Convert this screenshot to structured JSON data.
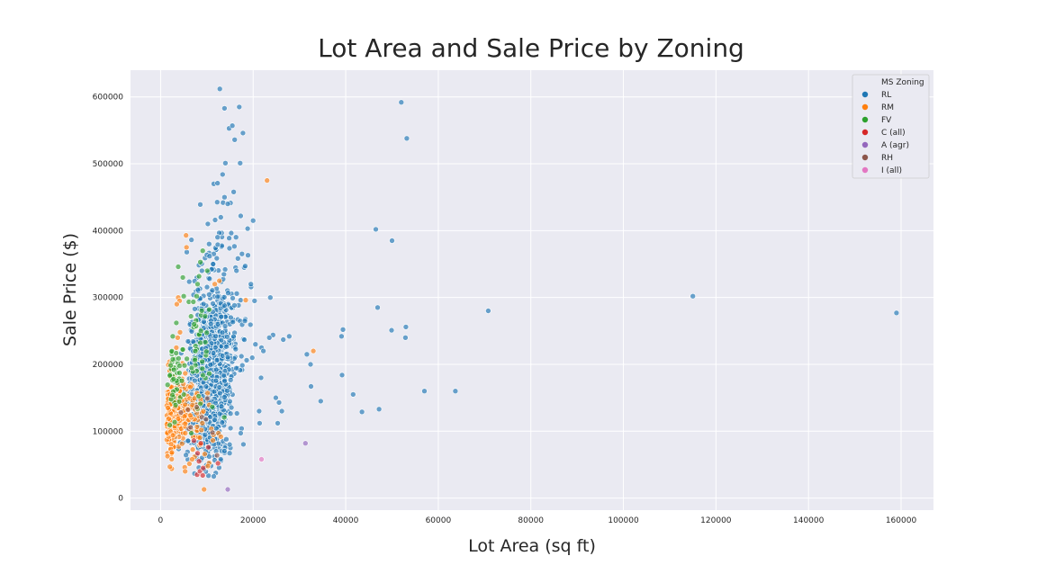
{
  "chart_data": {
    "type": "scatter",
    "title": "Lot Area and Sale Price by Zoning",
    "xlabel": "Lot Area (sq ft)",
    "ylabel": "Sale Price ($)",
    "xlim": [
      -6500,
      167000
    ],
    "ylim": [
      -18000,
      640000
    ],
    "x_ticks": [
      0,
      20000,
      40000,
      60000,
      80000,
      100000,
      120000,
      140000,
      160000
    ],
    "y_ticks": [
      0,
      100000,
      200000,
      300000,
      400000,
      500000,
      600000
    ],
    "grid": true,
    "legend": {
      "title": "MS Zoning",
      "placement": "top-right"
    },
    "point_opacity": 0.65,
    "series": [
      {
        "name": "RL",
        "color": "#1f77b4",
        "clusters": [
          {
            "cx": 11000,
            "cy": 185000,
            "sx": 2200,
            "sy": 55000,
            "n": 950,
            "seed": 11
          },
          {
            "cx": 12500,
            "cy": 300000,
            "sx": 3000,
            "sy": 60000,
            "n": 140,
            "seed": 12
          },
          {
            "cx": 8500,
            "cy": 120000,
            "sx": 2500,
            "sy": 30000,
            "n": 160,
            "seed": 13
          }
        ],
        "points": [
          [
            12800,
            612000
          ],
          [
            13800,
            583000
          ],
          [
            17000,
            585000
          ],
          [
            14800,
            553000
          ],
          [
            15500,
            557000
          ],
          [
            16000,
            536000
          ],
          [
            17800,
            546000
          ],
          [
            17200,
            501000
          ],
          [
            14000,
            501000
          ],
          [
            13400,
            484000
          ],
          [
            11500,
            470000
          ],
          [
            12300,
            471000
          ],
          [
            52000,
            592000
          ],
          [
            53200,
            538000
          ],
          [
            46500,
            402000
          ],
          [
            50000,
            385000
          ],
          [
            115000,
            302000
          ],
          [
            159000,
            277000
          ],
          [
            70800,
            280000
          ],
          [
            46900,
            285000
          ],
          [
            23700,
            300000
          ],
          [
            39400,
            252000
          ],
          [
            39100,
            242000
          ],
          [
            49900,
            251000
          ],
          [
            53000,
            256000
          ],
          [
            52900,
            240000
          ],
          [
            31600,
            215000
          ],
          [
            32400,
            200000
          ],
          [
            39200,
            184000
          ],
          [
            57000,
            160000
          ],
          [
            63700,
            160000
          ],
          [
            41600,
            155000
          ],
          [
            34600,
            145000
          ],
          [
            32500,
            167000
          ],
          [
            43500,
            129000
          ],
          [
            47200,
            133000
          ],
          [
            25600,
            143000
          ],
          [
            24900,
            150000
          ],
          [
            26200,
            130000
          ],
          [
            27800,
            242000
          ],
          [
            26500,
            237000
          ],
          [
            24300,
            244000
          ],
          [
            23500,
            240000
          ],
          [
            21800,
            225000
          ],
          [
            22200,
            220000
          ],
          [
            21300,
            130000
          ],
          [
            21400,
            112000
          ],
          [
            25300,
            112000
          ],
          [
            20000,
            415000
          ],
          [
            18800,
            403000
          ],
          [
            17300,
            422000
          ],
          [
            16400,
            340000
          ],
          [
            19500,
            320000
          ],
          [
            20300,
            295000
          ],
          [
            18200,
            265000
          ],
          [
            20500,
            230000
          ],
          [
            19800,
            210000
          ],
          [
            21700,
            180000
          ],
          [
            17500,
            104000
          ],
          [
            17300,
            97000
          ],
          [
            12000,
            70000
          ],
          [
            10500,
            62000
          ],
          [
            14200,
            88000
          ],
          [
            13800,
            450000
          ],
          [
            15800,
            458000
          ],
          [
            14500,
            440000
          ],
          [
            10200,
            410000
          ],
          [
            13000,
            420000
          ]
        ]
      },
      {
        "name": "RM",
        "color": "#ff7f0e",
        "clusters": [
          {
            "cx": 3800,
            "cy": 130000,
            "sx": 1800,
            "sy": 28000,
            "n": 170,
            "seed": 21
          },
          {
            "cx": 1900,
            "cy": 100000,
            "sx": 500,
            "sy": 18000,
            "n": 40,
            "seed": 22
          },
          {
            "cx": 7000,
            "cy": 115000,
            "sx": 2000,
            "sy": 35000,
            "n": 50,
            "seed": 23
          }
        ],
        "points": [
          [
            23000,
            475000
          ],
          [
            5500,
            393000
          ],
          [
            5600,
            375000
          ],
          [
            18400,
            296000
          ],
          [
            3800,
            300000
          ],
          [
            4100,
            295000
          ],
          [
            3500,
            290000
          ],
          [
            33000,
            220000
          ],
          [
            9400,
            13000
          ],
          [
            12500,
            97000
          ],
          [
            13000,
            92000
          ],
          [
            5200,
            46000
          ],
          [
            5300,
            40000
          ],
          [
            6800,
            58000
          ],
          [
            10200,
            48000
          ],
          [
            3400,
            225000
          ],
          [
            3700,
            240000
          ],
          [
            4200,
            248000
          ],
          [
            2600,
            195000
          ],
          [
            2000,
            190000
          ],
          [
            1600,
            135000
          ],
          [
            12700,
            325000
          ],
          [
            11700,
            320000
          ]
        ]
      },
      {
        "name": "FV",
        "color": "#2ca02c",
        "clusters": [
          {
            "cx": 3300,
            "cy": 180000,
            "sx": 900,
            "sy": 30000,
            "n": 45,
            "seed": 31
          },
          {
            "cx": 8200,
            "cy": 225000,
            "sx": 1500,
            "sy": 45000,
            "n": 40,
            "seed": 32
          }
        ],
        "points": [
          [
            3800,
            346000
          ],
          [
            4800,
            330000
          ],
          [
            5000,
            302000
          ],
          [
            8000,
            320000
          ],
          [
            8600,
            353000
          ],
          [
            9100,
            370000
          ],
          [
            10100,
            340000
          ],
          [
            10500,
            282000
          ],
          [
            9600,
            272000
          ],
          [
            2800,
            178000
          ],
          [
            3400,
            262000
          ],
          [
            7800,
            302000
          ]
        ]
      },
      {
        "name": "C (all)",
        "color": "#d62728",
        "clusters": [],
        "points": [
          [
            7900,
            35000
          ],
          [
            8500,
            40000
          ],
          [
            9100,
            34000
          ],
          [
            8300,
            55000
          ],
          [
            9200,
            45000
          ],
          [
            12400,
            52000
          ],
          [
            8000,
            67000
          ],
          [
            7200,
            86000
          ],
          [
            10300,
            76000
          ],
          [
            8700,
            82000
          ]
        ]
      },
      {
        "name": "A (agr)",
        "color": "#9467bd",
        "clusters": [],
        "points": [
          [
            31300,
            82000
          ],
          [
            14500,
            13000
          ]
        ]
      },
      {
        "name": "RH",
        "color": "#8c564b",
        "clusters": [],
        "points": [
          [
            4400,
            128000
          ],
          [
            6100,
            104000
          ],
          [
            7800,
            136000
          ],
          [
            8900,
            121000
          ],
          [
            12200,
            64000
          ],
          [
            9800,
            118000
          ],
          [
            5900,
            132000
          ],
          [
            10100,
            149000
          ],
          [
            6500,
            106000
          ],
          [
            11200,
            98000
          ]
        ]
      },
      {
        "name": "I (all)",
        "color": "#e377c2",
        "clusters": [],
        "points": [
          [
            21800,
            58000
          ]
        ]
      }
    ]
  }
}
